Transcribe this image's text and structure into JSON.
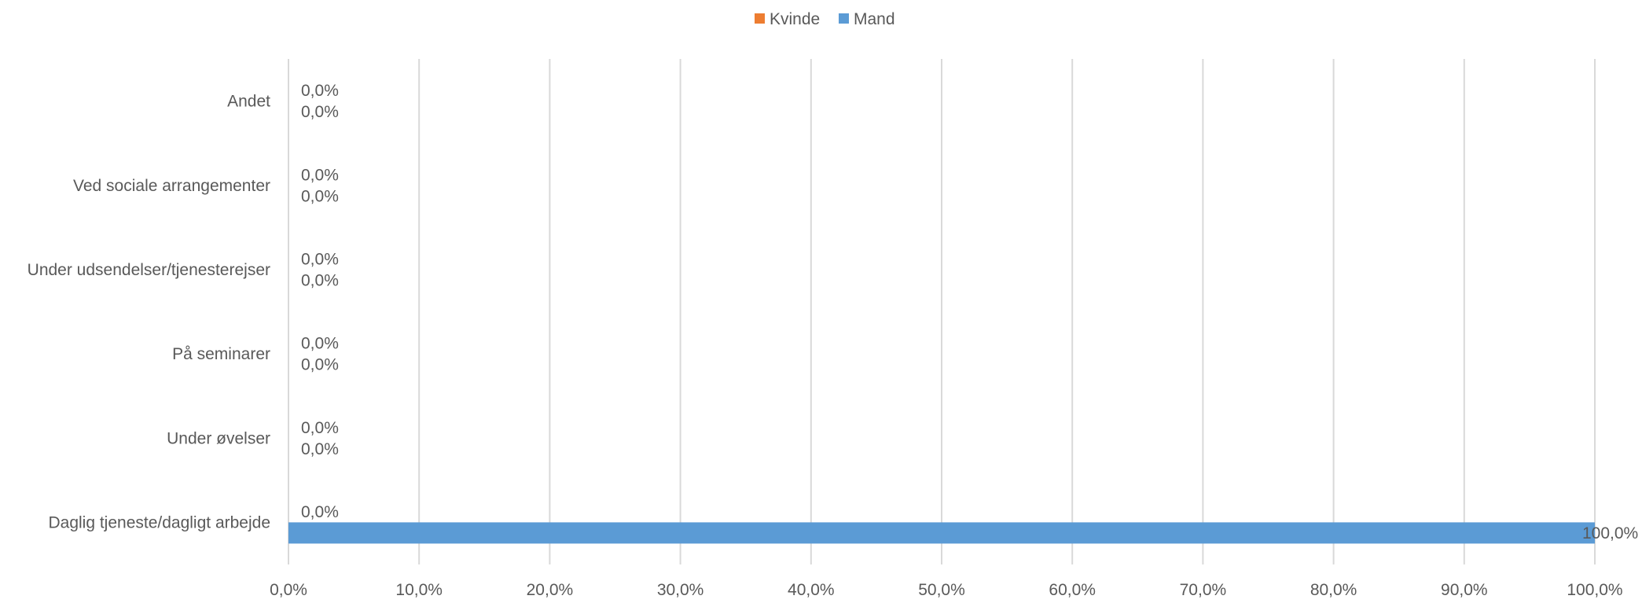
{
  "chart_data": {
    "type": "bar",
    "orientation": "horizontal",
    "categories": [
      "Andet",
      "Ved sociale arrangementer",
      "Under udsendelser/tjenesterejser",
      "På seminarer",
      "Under øvelser",
      "Daglig tjeneste/dagligt arbejde"
    ],
    "series": [
      {
        "name": "Kvinde",
        "color": "#ED7D31",
        "values": [
          0.0,
          0.0,
          0.0,
          0.0,
          0.0,
          0.0
        ],
        "labels": [
          "0,0%",
          "0,0%",
          "0,0%",
          "0,0%",
          "0,0%",
          "0,0%"
        ]
      },
      {
        "name": "Mand",
        "color": "#5B9BD5",
        "values": [
          0.0,
          0.0,
          0.0,
          0.0,
          0.0,
          100.0
        ],
        "labels": [
          "0,0%",
          "0,0%",
          "0,0%",
          "0,0%",
          "0,0%",
          "100,0%"
        ]
      }
    ],
    "xlim": [
      0,
      100
    ],
    "x_ticks": [
      0,
      10,
      20,
      30,
      40,
      50,
      60,
      70,
      80,
      90,
      100
    ],
    "x_tick_labels": [
      "0,0%",
      "10,0%",
      "20,0%",
      "30,0%",
      "40,0%",
      "50,0%",
      "60,0%",
      "70,0%",
      "80,0%",
      "90,0%",
      "100,0%"
    ],
    "grid": true,
    "legend": "top-center"
  }
}
